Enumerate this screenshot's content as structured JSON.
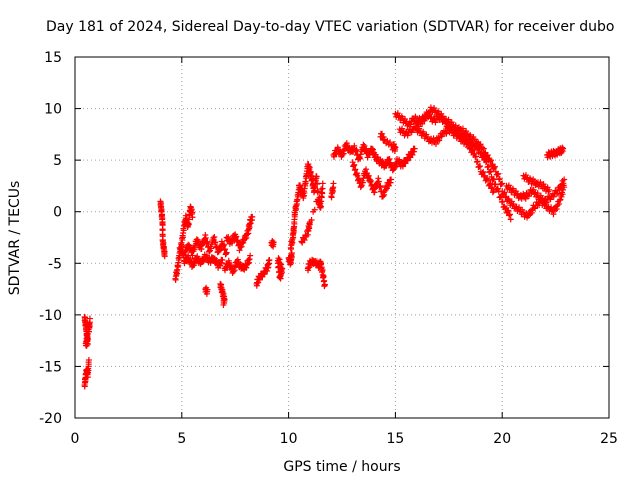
{
  "chart_data": {
    "type": "scatter",
    "title": "Day 181 of 2024, Sidereal Day-to-day VTEC variation (SDTVAR) for receiver dubo",
    "xlabel": "GPS time / hours",
    "ylabel": "SDTVAR / TECUs",
    "xlim": [
      0,
      25
    ],
    "ylim": [
      -20,
      15
    ],
    "xticks": [
      0,
      5,
      10,
      15,
      20,
      25
    ],
    "yticks": [
      -20,
      -15,
      -10,
      -5,
      0,
      5,
      10,
      15
    ],
    "grid": true,
    "marker": "+",
    "series": [
      {
        "name": "SDTVAR",
        "color": "#ff0000",
        "segments": [
          [
            [
              0.45,
              -16.8
            ],
            [
              0.5,
              -16.0
            ],
            [
              0.55,
              -15.3
            ],
            [
              0.6,
              -15.8
            ],
            [
              0.65,
              -14.5
            ]
          ],
          [
            [
              0.45,
              -10.2
            ],
            [
              0.5,
              -11.0
            ],
            [
              0.55,
              -11.8
            ],
            [
              0.6,
              -12.6
            ],
            [
              0.5,
              -12.9
            ],
            [
              0.65,
              -11.5
            ],
            [
              0.7,
              -10.6
            ]
          ],
          [
            [
              4.0,
              1.0
            ],
            [
              4.05,
              0.0
            ],
            [
              4.1,
              -1.0
            ],
            [
              4.1,
              -2.5
            ],
            [
              4.15,
              -3.5
            ],
            [
              4.2,
              -4.2
            ]
          ],
          [
            [
              4.7,
              -6.5
            ],
            [
              4.8,
              -5.5
            ],
            [
              4.9,
              -4.0
            ],
            [
              5.0,
              -3.0
            ],
            [
              5.1,
              -1.5
            ],
            [
              5.2,
              -0.5
            ],
            [
              5.3,
              -1.5
            ],
            [
              5.4,
              0.5
            ],
            [
              5.5,
              -0.3
            ]
          ],
          [
            [
              4.9,
              -3.5
            ],
            [
              5.1,
              -4.2
            ],
            [
              5.3,
              -3.2
            ],
            [
              5.5,
              -4.0
            ],
            [
              5.7,
              -2.8
            ],
            [
              5.9,
              -3.5
            ],
            [
              6.1,
              -2.5
            ],
            [
              6.3,
              -3.8
            ],
            [
              6.5,
              -2.5
            ],
            [
              6.7,
              -4.0
            ],
            [
              6.9,
              -3.0
            ],
            [
              7.1,
              -4.2
            ]
          ],
          [
            [
              5.1,
              -4.8
            ],
            [
              5.3,
              -4.5
            ],
            [
              5.5,
              -5.2
            ],
            [
              5.7,
              -4.5
            ],
            [
              5.9,
              -5.0
            ],
            [
              6.1,
              -4.3
            ],
            [
              6.3,
              -4.8
            ],
            [
              6.5,
              -4.5
            ],
            [
              6.7,
              -5.2
            ],
            [
              6.9,
              -4.8
            ]
          ],
          [
            [
              6.1,
              -7.5
            ],
            [
              6.2,
              -7.8
            ]
          ],
          [
            [
              6.8,
              -7.0
            ],
            [
              6.9,
              -7.8
            ],
            [
              7.0,
              -8.5
            ],
            [
              6.95,
              -8.8
            ]
          ],
          [
            [
              7.0,
              -5.5
            ],
            [
              7.2,
              -5.0
            ],
            [
              7.4,
              -5.8
            ],
            [
              7.6,
              -4.8
            ],
            [
              7.8,
              -5.5
            ],
            [
              8.0,
              -5.3
            ],
            [
              8.2,
              -4.5
            ]
          ],
          [
            [
              7.1,
              -2.5
            ],
            [
              7.3,
              -3.0
            ],
            [
              7.5,
              -2.2
            ],
            [
              7.7,
              -3.5
            ],
            [
              7.9,
              -2.8
            ],
            [
              8.1,
              -2.0
            ],
            [
              8.2,
              -1.0
            ],
            [
              8.3,
              -0.5
            ]
          ],
          [
            [
              8.5,
              -7.0
            ],
            [
              8.6,
              -6.5
            ],
            [
              8.8,
              -6.0
            ],
            [
              9.0,
              -5.5
            ],
            [
              9.1,
              -4.8
            ]
          ],
          [
            [
              9.2,
              -3.0
            ],
            [
              9.3,
              -3.2
            ]
          ],
          [
            [
              9.5,
              -5.0
            ],
            [
              9.6,
              -6.5
            ],
            [
              9.7,
              -5.5
            ],
            [
              9.5,
              -4.5
            ]
          ],
          [
            [
              10.0,
              -4.5
            ],
            [
              10.1,
              -5.0
            ],
            [
              10.15,
              -4.0
            ]
          ],
          [
            [
              10.1,
              -3.5
            ],
            [
              10.2,
              -2.5
            ],
            [
              10.25,
              -1.5
            ],
            [
              10.3,
              0.0
            ],
            [
              10.4,
              1.0
            ],
            [
              10.5,
              2.5
            ],
            [
              10.6,
              2.0
            ],
            [
              10.7,
              1.5
            ],
            [
              10.8,
              3.0
            ],
            [
              10.9,
              4.5
            ],
            [
              11.0,
              4.0
            ],
            [
              11.1,
              3.0
            ],
            [
              11.2,
              2.0
            ],
            [
              11.3,
              3.5
            ],
            [
              11.4,
              1.0
            ],
            [
              11.5,
              0.5
            ],
            [
              11.6,
              2.5
            ],
            [
              11.0,
              -1.0
            ],
            [
              10.9,
              -2.0
            ],
            [
              10.6,
              -3.0
            ]
          ],
          [
            [
              10.9,
              -5.5
            ],
            [
              11.0,
              -5.0
            ],
            [
              11.2,
              -4.8
            ],
            [
              11.4,
              -5.2
            ],
            [
              11.5,
              -5.0
            ],
            [
              11.6,
              -6.0
            ],
            [
              11.7,
              -7.3
            ]
          ],
          [
            [
              12.0,
              1.5
            ],
            [
              12.1,
              2.5
            ]
          ],
          [
            [
              12.1,
              5.5
            ],
            [
              12.3,
              6.0
            ],
            [
              12.5,
              5.5
            ],
            [
              12.7,
              6.5
            ],
            [
              12.9,
              5.8
            ],
            [
              13.1,
              6.2
            ],
            [
              13.3,
              5.0
            ],
            [
              13.5,
              6.5
            ],
            [
              13.7,
              5.5
            ],
            [
              13.9,
              6.0
            ],
            [
              14.1,
              5.2
            ],
            [
              14.3,
              4.8
            ],
            [
              14.5,
              4.5
            ],
            [
              14.7,
              5.0
            ],
            [
              14.9,
              4.0
            ],
            [
              15.1,
              5.0
            ],
            [
              15.3,
              4.5
            ],
            [
              15.5,
              5.0
            ],
            [
              15.7,
              5.5
            ],
            [
              15.9,
              6.0
            ]
          ],
          [
            [
              13.0,
              4.8
            ],
            [
              13.2,
              3.5
            ],
            [
              13.4,
              2.5
            ],
            [
              13.6,
              4.0
            ],
            [
              13.8,
              3.0
            ],
            [
              14.0,
              2.0
            ],
            [
              14.2,
              3.0
            ],
            [
              14.4,
              1.5
            ],
            [
              14.6,
              2.5
            ],
            [
              14.8,
              3.0
            ]
          ],
          [
            [
              14.9,
              6.5
            ],
            [
              15.0,
              6.0
            ],
            [
              14.5,
              7.0
            ],
            [
              14.3,
              7.5
            ]
          ],
          [
            [
              15.0,
              9.5
            ],
            [
              15.3,
              9.0
            ],
            [
              15.6,
              8.5
            ],
            [
              15.9,
              9.0
            ],
            [
              16.2,
              8.8
            ],
            [
              16.5,
              9.5
            ],
            [
              16.8,
              8.8
            ],
            [
              17.1,
              9.2
            ],
            [
              17.4,
              8.5
            ],
            [
              17.7,
              8.0
            ],
            [
              18.0,
              7.5
            ],
            [
              18.3,
              7.0
            ],
            [
              18.6,
              6.5
            ],
            [
              18.9,
              6.0
            ],
            [
              19.2,
              5.0
            ],
            [
              19.5,
              3.5
            ],
            [
              19.8,
              2.0
            ],
            [
              20.1,
              0.5
            ],
            [
              20.4,
              -0.5
            ]
          ],
          [
            [
              15.2,
              8.0
            ],
            [
              15.5,
              7.5
            ],
            [
              15.8,
              8.0
            ],
            [
              16.1,
              8.5
            ],
            [
              16.4,
              9.0
            ],
            [
              16.7,
              10.0
            ],
            [
              17.0,
              9.5
            ],
            [
              17.3,
              9.0
            ],
            [
              17.6,
              8.5
            ],
            [
              17.9,
              8.0
            ],
            [
              18.2,
              7.8
            ],
            [
              18.5,
              7.2
            ],
            [
              18.8,
              6.8
            ],
            [
              19.1,
              6.0
            ],
            [
              19.4,
              5.0
            ],
            [
              19.7,
              4.0
            ],
            [
              20.0,
              2.5
            ]
          ],
          [
            [
              16.0,
              8.0
            ],
            [
              16.3,
              7.5
            ],
            [
              16.6,
              7.0
            ],
            [
              16.9,
              6.8
            ],
            [
              17.2,
              7.5
            ],
            [
              17.5,
              8.0
            ],
            [
              17.8,
              7.5
            ],
            [
              18.1,
              7.0
            ],
            [
              18.4,
              6.5
            ],
            [
              18.7,
              5.5
            ],
            [
              19.0,
              4.0
            ],
            [
              19.3,
              3.0
            ],
            [
              19.6,
              2.0
            ]
          ],
          [
            [
              20.0,
              2.0
            ],
            [
              20.3,
              1.0
            ],
            [
              20.6,
              0.5
            ],
            [
              20.9,
              0.0
            ],
            [
              21.2,
              -0.5
            ],
            [
              21.5,
              0.5
            ],
            [
              21.8,
              1.0
            ],
            [
              22.1,
              0.5
            ],
            [
              22.4,
              0.0
            ],
            [
              22.7,
              1.0
            ],
            [
              22.9,
              2.5
            ]
          ],
          [
            [
              20.2,
              2.5
            ],
            [
              20.5,
              2.0
            ],
            [
              20.8,
              1.5
            ],
            [
              21.1,
              1.5
            ],
            [
              21.4,
              2.0
            ],
            [
              21.7,
              1.5
            ],
            [
              22.0,
              1.0
            ],
            [
              22.3,
              1.5
            ],
            [
              22.6,
              2.0
            ],
            [
              22.9,
              3.0
            ]
          ],
          [
            [
              21.0,
              3.5
            ],
            [
              21.3,
              3.0
            ],
            [
              21.6,
              2.8
            ],
            [
              21.9,
              2.5
            ],
            [
              22.2,
              2.0
            ]
          ],
          [
            [
              22.1,
              5.5
            ],
            [
              22.3,
              5.6
            ],
            [
              22.5,
              5.7
            ],
            [
              22.7,
              5.9
            ],
            [
              22.85,
              6.0
            ]
          ]
        ]
      }
    ]
  }
}
